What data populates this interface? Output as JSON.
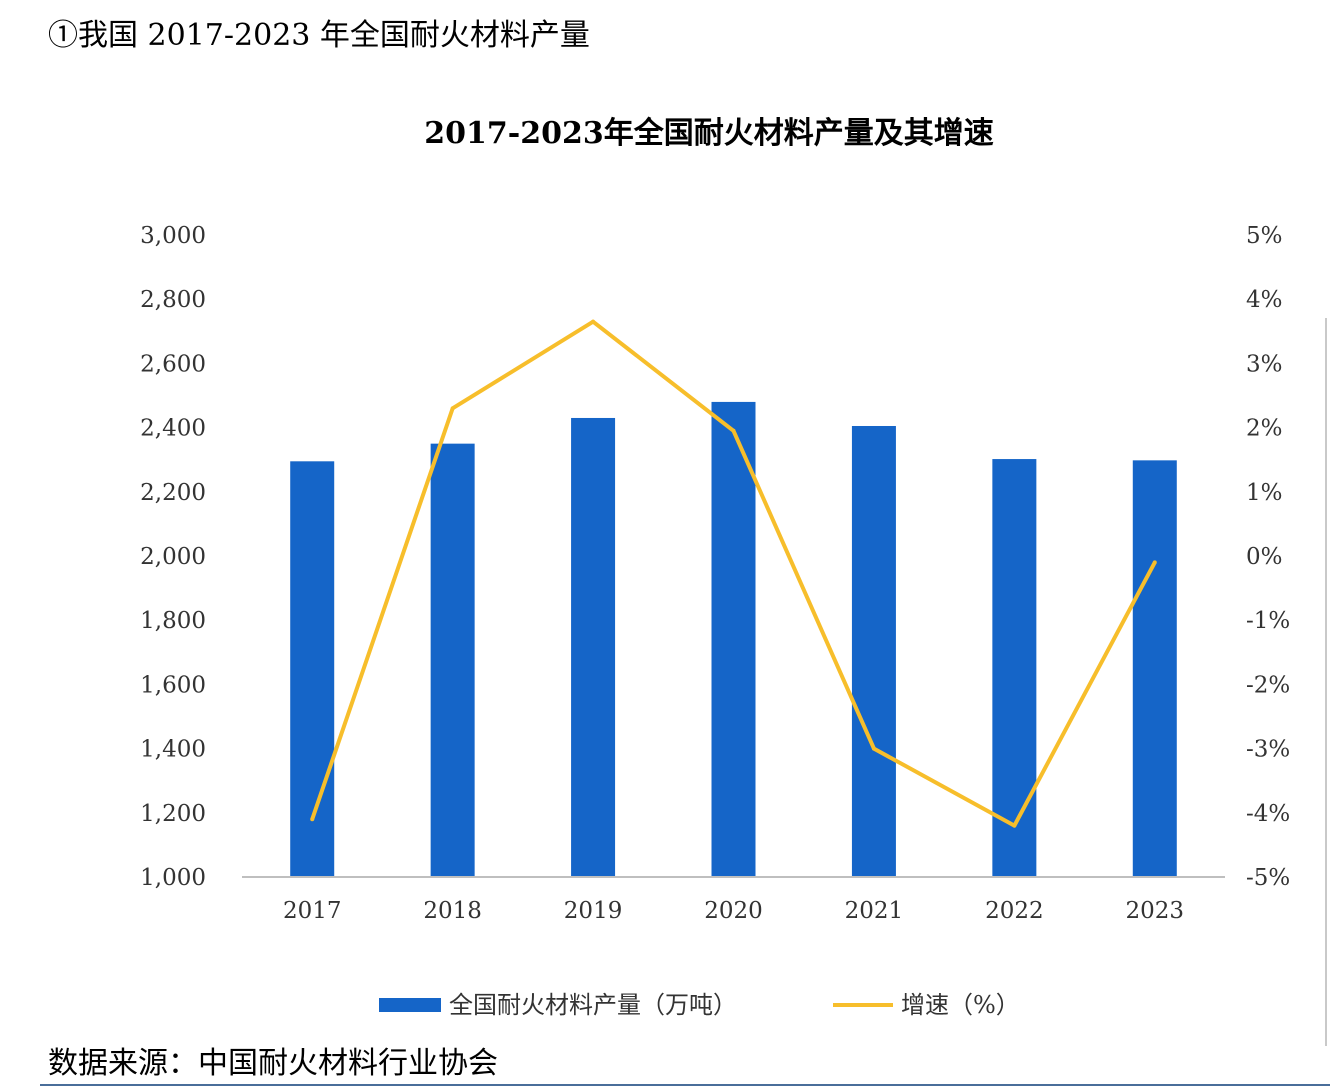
{
  "heading": "①我国 2017-2023 年全国耐火材料产量",
  "source": "数据来源：中国耐火材料行业协会",
  "colors": {
    "bar": "#1565C8",
    "line": "#F7BE2B",
    "axis": "#bfbfbf"
  },
  "chart_data": {
    "type": "bar",
    "title": "2017-2023年全国耐火材料产量及其增速",
    "categories": [
      "2017",
      "2018",
      "2019",
      "2020",
      "2021",
      "2022",
      "2023"
    ],
    "series": [
      {
        "name": "全国耐火材料产量（万吨）",
        "type": "bar",
        "axis": "left",
        "values": [
          2295,
          2350,
          2430,
          2480,
          2405,
          2302,
          2298
        ]
      },
      {
        "name": "增速（%）",
        "type": "line",
        "axis": "right",
        "values": [
          -4.1,
          2.3,
          3.65,
          1.95,
          -3.0,
          -4.2,
          -0.1
        ]
      }
    ],
    "ylim_left": [
      1000,
      3000
    ],
    "yticks_left": [
      "1,000",
      "1,200",
      "1,400",
      "1,600",
      "1,800",
      "2,000",
      "2,200",
      "2,400",
      "2,600",
      "2,800",
      "3,000"
    ],
    "ylim_right": [
      -5,
      5
    ],
    "yticks_right": [
      "-5%",
      "-4%",
      "-3%",
      "-2%",
      "-1%",
      "0%",
      "1%",
      "2%",
      "3%",
      "4%",
      "5%"
    ],
    "grid": false,
    "legend_position": "bottom"
  }
}
